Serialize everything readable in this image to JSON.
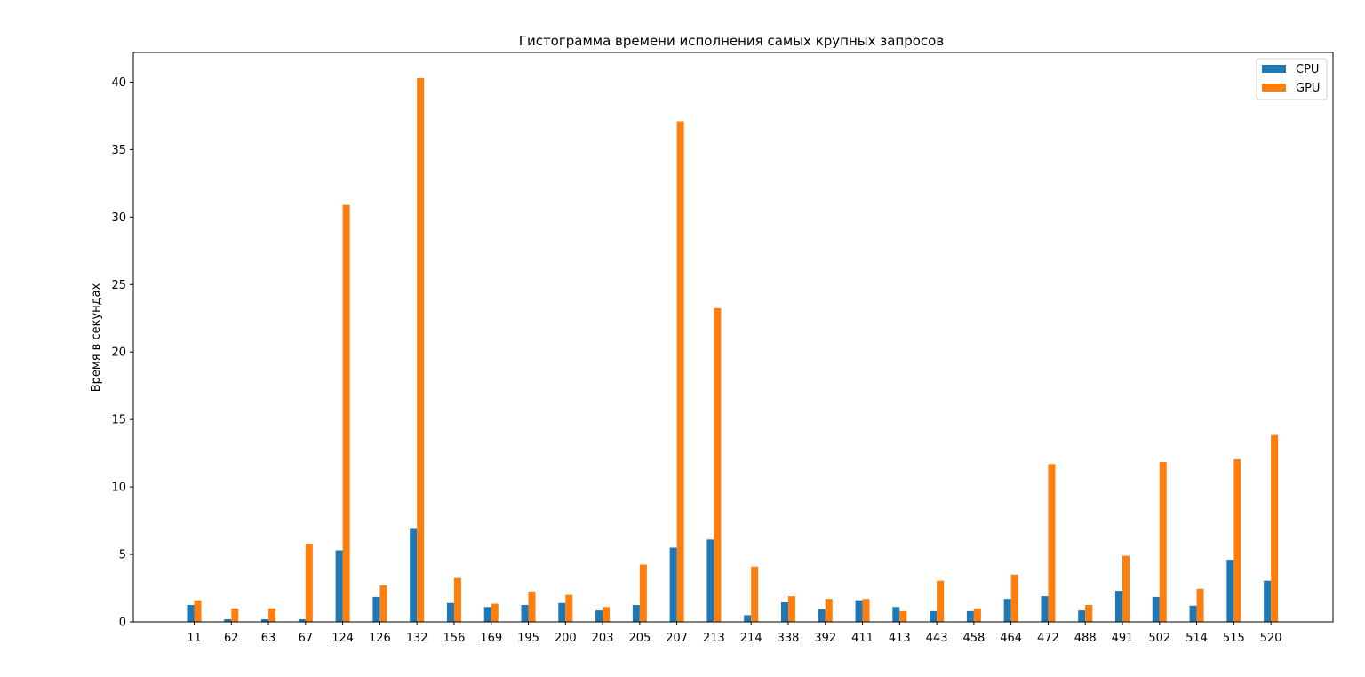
{
  "chart_data": {
    "type": "bar",
    "title": "Гистограмма времени исполнения самых крупных запросов",
    "xlabel": "",
    "ylabel": "Время в секундах",
    "ylim": [
      0,
      42.2
    ],
    "yticks": [
      0,
      5,
      10,
      15,
      20,
      25,
      30,
      35,
      40
    ],
    "grid": false,
    "legend_position": "top-right",
    "categories": [
      "11",
      "62",
      "63",
      "67",
      "124",
      "126",
      "132",
      "156",
      "169",
      "195",
      "200",
      "203",
      "205",
      "207",
      "213",
      "214",
      "338",
      "392",
      "411",
      "413",
      "443",
      "458",
      "464",
      "472",
      "488",
      "491",
      "502",
      "514",
      "515",
      "520"
    ],
    "series": [
      {
        "name": "CPU",
        "color": "#1f77b4",
        "values": [
          1.25,
          0.2,
          0.2,
          0.2,
          5.3,
          1.85,
          6.95,
          1.4,
          1.1,
          1.25,
          1.4,
          0.85,
          1.25,
          5.5,
          6.1,
          0.5,
          1.45,
          0.95,
          1.6,
          1.1,
          0.8,
          0.8,
          1.7,
          1.9,
          0.85,
          2.3,
          1.85,
          1.2,
          4.6,
          3.05
        ]
      },
      {
        "name": "GPU",
        "color": "#ff7f0e",
        "values": [
          1.6,
          1.0,
          1.0,
          5.8,
          30.9,
          2.7,
          40.3,
          3.25,
          1.35,
          2.25,
          2.0,
          1.1,
          4.25,
          37.1,
          23.25,
          4.1,
          1.9,
          1.7,
          1.7,
          0.8,
          3.05,
          1.0,
          3.5,
          11.7,
          1.25,
          4.9,
          11.85,
          2.45,
          12.05,
          13.85
        ]
      }
    ]
  }
}
